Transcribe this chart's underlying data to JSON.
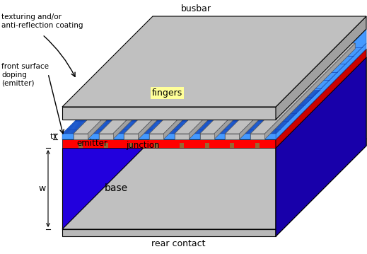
{
  "colors": {
    "gray": "#c0c0c0",
    "dark_gray": "#808080",
    "med_gray": "#a0a0a0",
    "cell_blue": "#4499ff",
    "cell_blue_dark": "#2266cc",
    "dark_blue": "#1100cc",
    "base_blue": "#2200dd",
    "red": "#ff0000",
    "red_dark": "#cc0000",
    "black": "#000000",
    "light_yellow": "#ffff99",
    "white": "#ffffff",
    "silver": "#b8b8b8",
    "brown": "#996633"
  },
  "labels": {
    "busbar": "busbar",
    "fingers": "fingers",
    "texturing": "texturing and/or\nanti-reflection coating",
    "front_surface": "front surface\ndoping\n(emitter)",
    "emitter": "emitter",
    "junction": "junction",
    "base": "base",
    "rear_contact": "rear contact",
    "t": "t",
    "w": "w"
  }
}
